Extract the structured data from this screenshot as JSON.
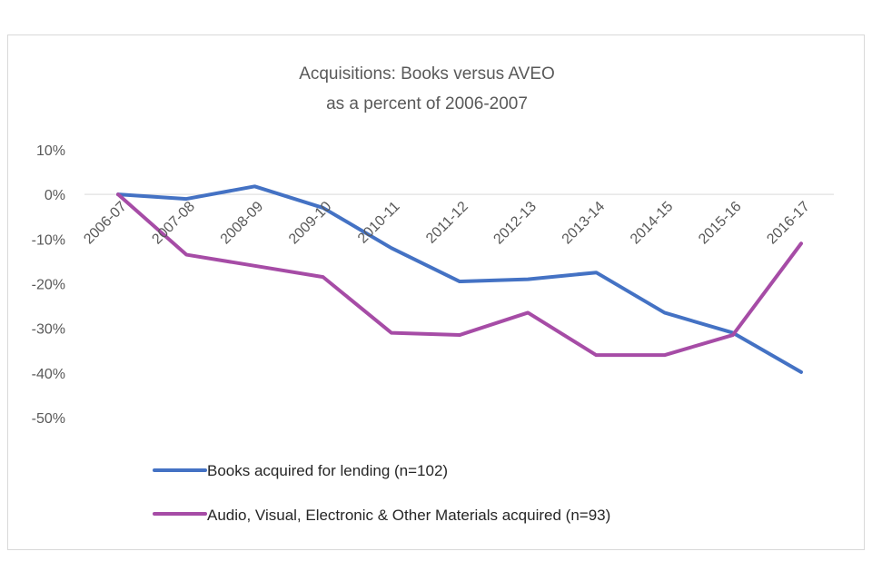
{
  "chart_data": {
    "type": "line",
    "title_lines": [
      "Acquisitions: Books versus AVEO",
      "as a percent of 2006-2007"
    ],
    "categories": [
      "2006-07",
      "2007-08",
      "2008-09",
      "2009-10",
      "2010-11",
      "2011-12",
      "2012-13",
      "2013-14",
      "2014-15",
      "2015-16",
      "2016-17"
    ],
    "y_ticks": [
      10,
      0,
      -10,
      -20,
      -30,
      -40,
      -50
    ],
    "y_tick_labels": [
      "10%",
      "0%",
      "-10%",
      "-20%",
      "-30%",
      "-40%",
      "-50%"
    ],
    "ylim": [
      -50,
      10
    ],
    "series": [
      {
        "name": "Books acquired for lending (n=102)",
        "color": "#4472c4",
        "values": [
          0,
          -1,
          1.8,
          -3,
          -12,
          -19.5,
          -19,
          -17.5,
          -26.5,
          -31,
          -39.8
        ]
      },
      {
        "name": "Audio, Visual, Electronic & Other Materials acquired (n=93)",
        "color": "#a64ca6",
        "values": [
          0,
          -13.5,
          -16,
          -18.5,
          -31,
          -31.5,
          -26.5,
          -36,
          -36,
          -31.5,
          -11
        ]
      }
    ],
    "legend_position": "bottom-left"
  }
}
